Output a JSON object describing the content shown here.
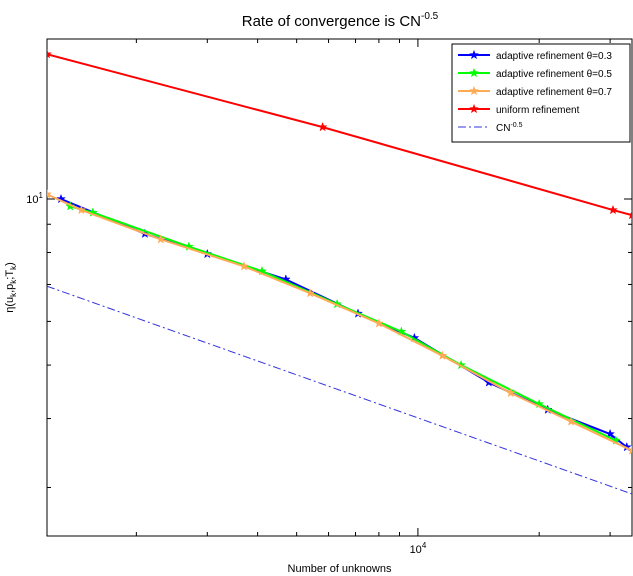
{
  "chart_data": {
    "type": "line",
    "title": "Rate of convergence is CN",
    "title_superscript": "-0.5",
    "xlabel": "Number of unknowns",
    "ylabel": "η(u_k,p_k;T_k)",
    "ylabel_parts": {
      "base": "η(u",
      "s1": "k",
      "m1": ",p",
      "s2": "k",
      "m2": ";T",
      "s3": "k",
      "end": ")"
    },
    "xscale": "log",
    "yscale": "log",
    "xlim": [
      1200,
      34000
    ],
    "ylim": [
      2.45,
      19.5
    ],
    "xticks": [
      {
        "value": 10000,
        "base": "10",
        "exp": "4"
      }
    ],
    "yticks": [
      {
        "value": 10,
        "base": "10",
        "exp": "1"
      }
    ],
    "grid": false,
    "legend_position": "top-right",
    "series": [
      {
        "name": "adaptive refinement θ=0.3",
        "color": "#0000ff",
        "marker": "star",
        "line": "solid",
        "x": [
          1300,
          2100,
          3000,
          4700,
          7100,
          9800,
          15000,
          21000,
          30000,
          33000
        ],
        "y": [
          10.0,
          8.65,
          7.95,
          7.15,
          6.2,
          5.6,
          4.65,
          4.15,
          3.75,
          3.55
        ]
      },
      {
        "name": "adaptive refinement θ=0.5",
        "color": "#00ff00",
        "marker": "star",
        "line": "solid",
        "x": [
          1370,
          1560,
          2700,
          4100,
          6300,
          9100,
          12800,
          20000,
          31000
        ],
        "y": [
          9.7,
          9.45,
          8.2,
          7.4,
          6.45,
          5.75,
          5.0,
          4.25,
          3.65
        ]
      },
      {
        "name": "adaptive refinement θ=0.7",
        "color": "#ffaa55",
        "marker": "star",
        "line": "solid",
        "x": [
          1200,
          1460,
          2300,
          3700,
          5400,
          8000,
          11500,
          17000,
          24000,
          34000
        ],
        "y": [
          10.2,
          9.55,
          8.45,
          7.55,
          6.75,
          5.95,
          5.2,
          4.45,
          3.95,
          3.5
        ]
      },
      {
        "name": "uniform refinement",
        "color": "#ff0000",
        "marker": "star",
        "line": "solid",
        "x": [
          1200,
          5800,
          30500,
          34000
        ],
        "y": [
          18.3,
          13.5,
          9.55,
          9.35
        ]
      },
      {
        "name": "CN",
        "name_superscript": "-0.5",
        "color": "#3333dd",
        "marker": "none",
        "line": "dashdot",
        "x": [
          1200,
          34000
        ],
        "y": [
          6.95,
          2.92
        ]
      }
    ]
  }
}
